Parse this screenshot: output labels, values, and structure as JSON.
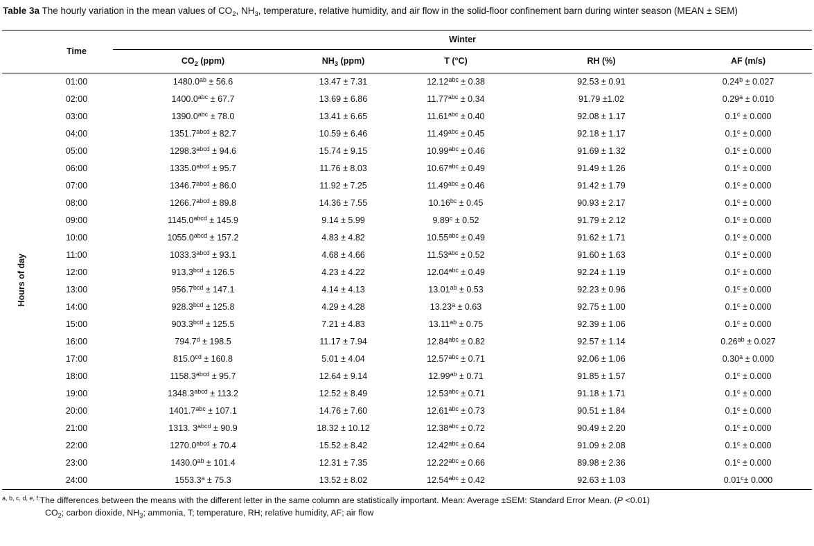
{
  "caption": {
    "label": "Table 3a",
    "text": "The hourly variation in the mean values of CO~2~, NH~3~, temperature, relative humidity, and air flow in the solid-floor confinement barn during winter season (MEAN ± SEM)"
  },
  "table": {
    "row_axis_label": "Hours of day",
    "time_header": "Time",
    "group_header": "Winter",
    "columns": [
      "CO~2~ (ppm)",
      "NH~3~ (ppm)",
      "T (°C)",
      "RH (%)",
      "AF (m/s)"
    ],
    "rows": [
      {
        "time": "01:00",
        "cells": [
          "1480.0^ab^ ± 56.6",
          "13.47 ± 7.31",
          "12.12^abc^ ± 0.38",
          "92.53 ± 0.91",
          "0.24^b^ ± 0.027"
        ]
      },
      {
        "time": "02:00",
        "cells": [
          "1400.0^abc^ ± 67.7",
          "13.69 ± 6.86",
          "11.77^abc^ ± 0.34",
          "91.79 ±1.02",
          "0.29^a^ ± 0.010"
        ]
      },
      {
        "time": "03:00",
        "cells": [
          "1390.0^abc^ ± 78.0",
          "13.41 ± 6.65",
          "11.61^abc^ ± 0.40",
          "92.08 ± 1.17",
          "0.1^c^ ± 0.000"
        ]
      },
      {
        "time": "04:00",
        "cells": [
          "1351.7^abcd^ ± 82.7",
          "10.59 ± 6.46",
          "11.49^abc^ ± 0.45",
          "92.18 ± 1.17",
          "0.1^c^ ± 0.000"
        ]
      },
      {
        "time": "05:00",
        "cells": [
          "1298.3^abcd^ ± 94.6",
          "15.74 ± 9.15",
          "10.99^abc^ ± 0.46",
          "91.69 ± 1.32",
          "0.1^c^ ± 0.000"
        ]
      },
      {
        "time": "06:00",
        "cells": [
          "1335.0^abcd^ ± 95.7",
          "11.76 ± 8.03",
          "10.67^abc^ ± 0.49",
          "91.49 ± 1.26",
          "0.1^c^ ± 0.000"
        ]
      },
      {
        "time": "07:00",
        "cells": [
          "1346.7^abcd^ ± 86.0",
          "11.92 ± 7.25",
          "11.49^abc^ ± 0.46",
          "91.42 ± 1.79",
          "0.1^c^ ± 0.000"
        ]
      },
      {
        "time": "08:00",
        "cells": [
          "1266.7^abcd^ ± 89.8",
          "14.36 ± 7.55",
          "10.16^bc^ ± 0.45",
          "90.93 ± 2.17",
          "0.1^c^ ± 0.000"
        ]
      },
      {
        "time": "09:00",
        "cells": [
          "1145.0^abcd^ ± 145.9",
          "9.14 ± 5.99",
          "9.89^c^ ± 0.52",
          "91.79 ± 2.12",
          "0.1^c^ ± 0.000"
        ]
      },
      {
        "time": "10:00",
        "cells": [
          "1055.0^abcd^ ± 157.2",
          "4.83 ± 4.82",
          "10.55^abc^ ± 0.49",
          "91.62 ± 1.71",
          "0.1^c^ ± 0.000"
        ]
      },
      {
        "time": "11:00",
        "cells": [
          "1033.3^abcd^ ± 93.1",
          "4.68 ± 4.66",
          "11.53^abc^ ± 0.52",
          "91.60 ± 1.63",
          "0.1^c^ ± 0.000"
        ]
      },
      {
        "time": "12:00",
        "cells": [
          "913.3^bcd^ ± 126.5",
          "4.23 ± 4.22",
          "12.04^abc^ ± 0.49",
          "92.24 ± 1.19",
          "0.1^c^ ± 0.000"
        ]
      },
      {
        "time": "13:00",
        "cells": [
          "956.7^bcd^ ± 147.1",
          "4.14 ± 4.13",
          "13.01^ab^ ± 0.53",
          "92.23 ± 0.96",
          "0.1^c^ ± 0.000"
        ]
      },
      {
        "time": "14:00",
        "cells": [
          "928.3^bcd^ ± 125.8",
          "4.29 ± 4.28",
          "13.23^a^ ± 0.63",
          "92.75 ± 1.00",
          "0.1^c^ ± 0.000"
        ]
      },
      {
        "time": "15:00",
        "cells": [
          "903.3^bcd^ ± 125.5",
          "7.21 ± 4.83",
          "13.11^ab^ ± 0.75",
          "92.39 ± 1.06",
          "0.1^c^ ± 0.000"
        ]
      },
      {
        "time": "16:00",
        "cells": [
          "794.7^d^ ± 198.5",
          "11.17 ± 7.94",
          "12.84^abc^ ± 0.82",
          "92.57 ± 1.14",
          "0.26^ab^ ± 0.027"
        ]
      },
      {
        "time": "17:00",
        "cells": [
          "815.0^cd^ ± 160.8",
          "5.01 ± 4.04",
          "12.57^abc^ ± 0.71",
          "92.06 ± 1.06",
          "0.30^a^ ± 0.000"
        ]
      },
      {
        "time": "18:00",
        "cells": [
          "1158.3^abcd^ ± 95.7",
          "12.64 ± 9.14",
          "12.99^ab^ ± 0.71",
          "91.85 ± 1.57",
          "0.1^c^ ± 0.000"
        ]
      },
      {
        "time": "19:00",
        "cells": [
          "1348.3^abcd^ ± 113.2",
          "12.52 ± 8.49",
          "12.53^abc^ ± 0.71",
          "91.18 ± 1.71",
          "0.1^c^ ± 0.000"
        ]
      },
      {
        "time": "20:00",
        "cells": [
          "1401.7^abc^ ± 107.1",
          "14.76 ± 7.60",
          "12.61^abc^ ± 0.73",
          "90.51 ± 1.84",
          "0.1^c^ ± 0.000"
        ]
      },
      {
        "time": "21:00",
        "cells": [
          "1313. 3^abcd^ ± 90.9",
          "18.32 ± 10.12",
          "12.38^abc^ ± 0.72",
          "90.49 ± 2.20",
          "0.1^c^ ± 0.000"
        ]
      },
      {
        "time": "22:00",
        "cells": [
          "1270.0^abcd^ ± 70.4",
          "15.52 ± 8.42",
          "12.42^abc^ ± 0.64",
          "91.09 ± 2.08",
          "0.1^c^ ± 0.000"
        ]
      },
      {
        "time": "23:00",
        "cells": [
          "1430.0^ab^ ± 101.4",
          "12.31 ± 7.35",
          "12.22^abc^ ± 0.66",
          "89.98 ± 2.36",
          "0.1^c^ ± 0.000"
        ]
      },
      {
        "time": "24:00",
        "cells": [
          "1553.3^a^ ± 75.3",
          "13.52 ± 8.02",
          "12.54^abc^ ± 0.42",
          "92.63 ± 1.03",
          "0.01^c^± 0.000"
        ]
      }
    ]
  },
  "footnotes": [
    "^a, b, c, d, e, f:^The differences between the means with the different letter in the same column are statistically important. Mean: Average ±SEM: Standard Error Mean. (*P* <0.01)",
    "CO~2~; carbon dioxide, NH~3~; ammonia, T; temperature, RH; relative humidity, AF; air flow"
  ]
}
